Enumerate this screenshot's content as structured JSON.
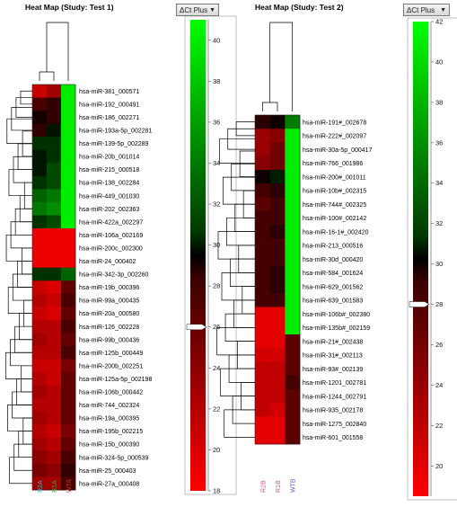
{
  "chart_data": [
    {
      "type": "heatmap",
      "title": "Heat Map (Study: Test 1)",
      "colorbar_label": "ΔCt Plus",
      "colorbar_ticks": [
        18,
        20,
        22,
        24,
        26,
        28,
        30,
        32,
        34,
        36,
        38,
        40
      ],
      "colorbar_range": [
        18,
        41
      ],
      "colorbar_marker": 26,
      "columns": [
        "R2A",
        "R1A",
        "WTA"
      ],
      "column_colors": [
        "#3fb8d0",
        "#3aa43a",
        "#c0392b"
      ],
      "rows": [
        {
          "label": "hsa-miR-381_000571",
          "values": [
            21,
            23,
            40
          ]
        },
        {
          "label": "hsa-miR-192_000491",
          "values": [
            27,
            28,
            40
          ]
        },
        {
          "label": "hsa-miR-186_002271",
          "values": [
            29,
            28,
            40
          ]
        },
        {
          "label": "hsa-miR-193a-5p_002281",
          "values": [
            28,
            30,
            40
          ]
        },
        {
          "label": "hsa-miR-139-5p_002289",
          "values": [
            31,
            31,
            40
          ]
        },
        {
          "label": "hsa-miR-20b_001014",
          "values": [
            30,
            31,
            40
          ]
        },
        {
          "label": "hsa-miR-215_000518",
          "values": [
            30,
            32,
            40
          ]
        },
        {
          "label": "hsa-miR-138_002284",
          "values": [
            31,
            32,
            40
          ]
        },
        {
          "label": "hsa-miR-449_001030",
          "values": [
            33,
            34,
            40
          ]
        },
        {
          "label": "hsa-miR-202_002363",
          "values": [
            34,
            35,
            40
          ]
        },
        {
          "label": "hsa-miR-422a_002297",
          "values": [
            31,
            32,
            40
          ]
        },
        {
          "label": "hsa-miR-106a_002169",
          "values": [
            19,
            19,
            19
          ]
        },
        {
          "label": "hsa-miR-200c_002300",
          "values": [
            19,
            19,
            19
          ]
        },
        {
          "label": "hsa-miR-24_000402",
          "values": [
            19,
            19,
            19
          ]
        },
        {
          "label": "hsa-miR-342-3p_002260",
          "values": [
            31,
            31,
            33
          ]
        },
        {
          "label": "hsa-miR-19b_000396",
          "values": [
            21,
            20,
            26
          ]
        },
        {
          "label": "hsa-miR-99a_000435",
          "values": [
            22,
            21,
            27
          ]
        },
        {
          "label": "hsa-miR-20a_000580",
          "values": [
            21,
            20,
            26
          ]
        },
        {
          "label": "hsa-miR-126_002228",
          "values": [
            22,
            22,
            27
          ]
        },
        {
          "label": "hsa-miR-99b_000436",
          "values": [
            23,
            22,
            26
          ]
        },
        {
          "label": "hsa-miR-125b_000449",
          "values": [
            22,
            22,
            27
          ]
        },
        {
          "label": "hsa-miR-200b_002251",
          "values": [
            21,
            21,
            25
          ]
        },
        {
          "label": "hsa-miR-125a-5p_002198",
          "values": [
            22,
            21,
            26
          ]
        },
        {
          "label": "hsa-miR-106b_000442",
          "values": [
            23,
            22,
            26
          ]
        },
        {
          "label": "hsa-miR-744_002324",
          "values": [
            22,
            22,
            26
          ]
        },
        {
          "label": "hsa-miR-19a_000395",
          "values": [
            23,
            22,
            26
          ]
        },
        {
          "label": "hsa-miR-195b_002215",
          "values": [
            22,
            21,
            25
          ]
        },
        {
          "label": "hsa-miR-15b_000390",
          "values": [
            23,
            22,
            26
          ]
        },
        {
          "label": "hsa-miR-324-5p_000539",
          "values": [
            24,
            23,
            27
          ]
        },
        {
          "label": "hsa-miR-25_000403",
          "values": [
            25,
            24,
            28
          ]
        },
        {
          "label": "hsa-miR-27a_000408",
          "values": [
            23,
            23,
            27
          ]
        }
      ]
    },
    {
      "type": "heatmap",
      "title": "Heat Map (Study: Test 2)",
      "colorbar_label": "ΔCt Plus",
      "colorbar_ticks": [
        20,
        22,
        24,
        26,
        28,
        30,
        32,
        34,
        36,
        38,
        40,
        42
      ],
      "colorbar_range": [
        18.5,
        42
      ],
      "colorbar_marker": 28,
      "columns": [
        "R2B",
        "R1B",
        "WTB"
      ],
      "column_colors": [
        "#d4508a",
        "#d4508a",
        "#5a5ad0"
      ],
      "rows": [
        {
          "label": "hsa-miR-191#_002678",
          "values": [
            29,
            30,
            35
          ]
        },
        {
          "label": "hsa-miR-222#_002097",
          "values": [
            24,
            25,
            41
          ]
        },
        {
          "label": "hsa-miR-30a-5p_000417",
          "values": [
            24,
            26,
            41
          ]
        },
        {
          "label": "hsa-miR-766_001986",
          "values": [
            25,
            26,
            41
          ]
        },
        {
          "label": "hsa-miR-200#_001011",
          "values": [
            30,
            31,
            41
          ]
        },
        {
          "label": "hsa-miR-10b#_002315",
          "values": [
            28,
            29,
            41
          ]
        },
        {
          "label": "hsa-miR-744#_002325",
          "values": [
            27,
            28,
            41
          ]
        },
        {
          "label": "hsa-miR-100#_002142",
          "values": [
            28,
            28,
            41
          ]
        },
        {
          "label": "hsa-miR-16-1#_002420",
          "values": [
            28,
            29,
            41
          ]
        },
        {
          "label": "hsa-miR-213_000516",
          "values": [
            28,
            28,
            41
          ]
        },
        {
          "label": "hsa-miR-30d_000420",
          "values": [
            28,
            28,
            41
          ]
        },
        {
          "label": "hsa-miR-584_001624",
          "values": [
            28,
            29,
            41
          ]
        },
        {
          "label": "hsa-miR-629_001562",
          "values": [
            28,
            29,
            41
          ]
        },
        {
          "label": "hsa-miR-639_001583",
          "values": [
            28,
            28,
            41
          ]
        },
        {
          "label": "hsa-miR-106b#_002380",
          "values": [
            20,
            20,
            41
          ]
        },
        {
          "label": "hsa-miR-135b#_002159",
          "values": [
            20,
            20,
            41
          ]
        },
        {
          "label": "hsa-miR-21#_002438",
          "values": [
            20,
            20,
            27
          ]
        },
        {
          "label": "hsa-miR-31#_002113",
          "values": [
            21,
            21,
            27
          ]
        },
        {
          "label": "hsa-miR-93#_002139",
          "values": [
            22,
            22,
            27
          ]
        },
        {
          "label": "hsa-miR-1201_002781",
          "values": [
            22,
            22,
            28
          ]
        },
        {
          "label": "hsa-miR-1244_002791",
          "values": [
            22,
            22,
            27
          ]
        },
        {
          "label": "hsa-miR-935_002178",
          "values": [
            22,
            21,
            27
          ]
        },
        {
          "label": "hsa-miR-1275_002840",
          "values": [
            20,
            20,
            27
          ]
        },
        {
          "label": "hsa-miR-601_001558",
          "values": [
            20,
            20,
            27
          ]
        }
      ]
    }
  ]
}
